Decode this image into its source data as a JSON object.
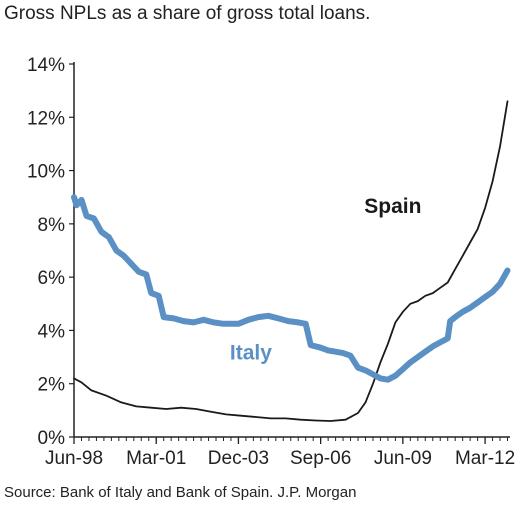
{
  "title": "Gross NPLs as a share of gross total loans.",
  "source": "Source: Bank of Italy and Bank of Spain. J.P. Morgan",
  "colors": {
    "italy": "#5b90c4",
    "spain": "#1a1a1a",
    "axis": "#222222"
  },
  "chart_data": {
    "type": "line",
    "title": "Gross NPLs as a share of gross total loans.",
    "xlabel": "",
    "ylabel": "",
    "x_ticks": [
      "Jun-98",
      "Mar-01",
      "Dec-03",
      "Sep-06",
      "Jun-09",
      "Mar-12"
    ],
    "y_ticks": [
      "0%",
      "2%",
      "4%",
      "6%",
      "8%",
      "10%",
      "12%",
      "14%"
    ],
    "xlim": [
      "1998-06",
      "2013-01"
    ],
    "ylim": [
      0,
      14
    ],
    "grid": false,
    "legend": "inline labels",
    "series": [
      {
        "name": "Italy",
        "points": [
          [
            "1998-06",
            9.0
          ],
          [
            "1998-07",
            8.7
          ],
          [
            "1998-09",
            8.9
          ],
          [
            "1998-11",
            8.3
          ],
          [
            "1999-02",
            8.2
          ],
          [
            "1999-05",
            7.7
          ],
          [
            "1999-08",
            7.5
          ],
          [
            "1999-11",
            7.0
          ],
          [
            "2000-02",
            6.8
          ],
          [
            "2000-05",
            6.5
          ],
          [
            "2000-08",
            6.2
          ],
          [
            "2000-11",
            6.1
          ],
          [
            "2001-01",
            5.4
          ],
          [
            "2001-04",
            5.3
          ],
          [
            "2001-06",
            4.5
          ],
          [
            "2001-10",
            4.45
          ],
          [
            "2002-02",
            4.35
          ],
          [
            "2002-06",
            4.3
          ],
          [
            "2002-10",
            4.4
          ],
          [
            "2003-02",
            4.3
          ],
          [
            "2003-06",
            4.25
          ],
          [
            "2003-12",
            4.25
          ],
          [
            "2004-04",
            4.4
          ],
          [
            "2004-08",
            4.5
          ],
          [
            "2004-12",
            4.55
          ],
          [
            "2005-04",
            4.45
          ],
          [
            "2005-08",
            4.35
          ],
          [
            "2005-12",
            4.3
          ],
          [
            "2006-03",
            4.25
          ],
          [
            "2006-05",
            3.45
          ],
          [
            "2006-09",
            3.35
          ],
          [
            "2006-12",
            3.25
          ],
          [
            "2007-03",
            3.2
          ],
          [
            "2007-06",
            3.15
          ],
          [
            "2007-09",
            3.05
          ],
          [
            "2007-12",
            2.6
          ],
          [
            "2008-03",
            2.5
          ],
          [
            "2008-06",
            2.35
          ],
          [
            "2008-09",
            2.2
          ],
          [
            "2008-12",
            2.15
          ],
          [
            "2009-03",
            2.3
          ],
          [
            "2009-06",
            2.55
          ],
          [
            "2009-09",
            2.8
          ],
          [
            "2009-12",
            3.0
          ],
          [
            "2010-03",
            3.2
          ],
          [
            "2010-06",
            3.4
          ],
          [
            "2010-09",
            3.55
          ],
          [
            "2010-12",
            3.7
          ],
          [
            "2011-01",
            4.35
          ],
          [
            "2011-03",
            4.5
          ],
          [
            "2011-06",
            4.7
          ],
          [
            "2011-09",
            4.85
          ],
          [
            "2011-12",
            5.05
          ],
          [
            "2012-03",
            5.25
          ],
          [
            "2012-06",
            5.45
          ],
          [
            "2012-09",
            5.75
          ],
          [
            "2012-12",
            6.25
          ]
        ]
      },
      {
        "name": "Spain",
        "points": [
          [
            "1998-06",
            2.2
          ],
          [
            "1998-09",
            2.05
          ],
          [
            "1999-01",
            1.75
          ],
          [
            "1999-07",
            1.55
          ],
          [
            "2000-01",
            1.3
          ],
          [
            "2000-07",
            1.15
          ],
          [
            "2001-01",
            1.1
          ],
          [
            "2001-07",
            1.05
          ],
          [
            "2002-01",
            1.1
          ],
          [
            "2002-07",
            1.05
          ],
          [
            "2003-01",
            0.95
          ],
          [
            "2003-07",
            0.85
          ],
          [
            "2004-01",
            0.8
          ],
          [
            "2004-07",
            0.75
          ],
          [
            "2005-01",
            0.7
          ],
          [
            "2005-07",
            0.7
          ],
          [
            "2006-01",
            0.65
          ],
          [
            "2006-07",
            0.62
          ],
          [
            "2007-01",
            0.6
          ],
          [
            "2007-07",
            0.65
          ],
          [
            "2007-12",
            0.9
          ],
          [
            "2008-03",
            1.3
          ],
          [
            "2008-06",
            2.0
          ],
          [
            "2008-09",
            2.8
          ],
          [
            "2008-12",
            3.5
          ],
          [
            "2009-03",
            4.3
          ],
          [
            "2009-06",
            4.7
          ],
          [
            "2009-09",
            5.0
          ],
          [
            "2009-12",
            5.1
          ],
          [
            "2010-03",
            5.3
          ],
          [
            "2010-06",
            5.4
          ],
          [
            "2010-09",
            5.6
          ],
          [
            "2010-12",
            5.8
          ],
          [
            "2011-03",
            6.3
          ],
          [
            "2011-06",
            6.8
          ],
          [
            "2011-09",
            7.3
          ],
          [
            "2011-12",
            7.8
          ],
          [
            "2012-03",
            8.6
          ],
          [
            "2012-06",
            9.6
          ],
          [
            "2012-09",
            10.9
          ],
          [
            "2012-12",
            12.6
          ]
        ]
      }
    ]
  }
}
